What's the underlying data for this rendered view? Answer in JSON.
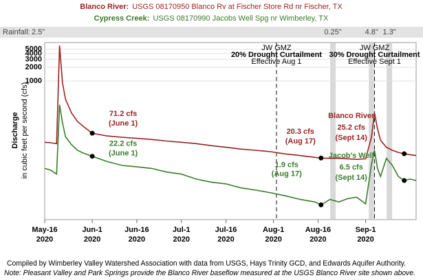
{
  "chart_data": {
    "type": "line",
    "title": {
      "river1": "Blanco River:",
      "site1": "USGS 08170950 Blanco Rv at Fischer Store Rd nr Fischer, TX",
      "river2": "Cypress Creek:",
      "site2": "USGS 08170990 Jacobs Well Spg nr Wimberley, TX"
    },
    "rainfall_label": "Rainfall:",
    "rainfall_first": "2.5\"",
    "rain_events": [
      {
        "x": 234,
        "label": "0.25\""
      },
      {
        "x": 247,
        "label": "4.8\""
      },
      {
        "x": 253,
        "label": "1.3\""
      }
    ],
    "y_label": "Discharge",
    "y_sublabel": "in cubic feet per second (cfs)",
    "log_scale": true,
    "grid": true,
    "xlim": [
      137,
      262
    ],
    "ylim": [
      0.9,
      7000
    ],
    "yticks": [
      1000,
      2000,
      3000,
      4000,
      5000
    ],
    "xticks": [
      {
        "value": 137,
        "label": "May-16\n2020"
      },
      {
        "value": 153,
        "label": "Jun-1\n2020"
      },
      {
        "value": 168,
        "label": "Jun-16\n2020"
      },
      {
        "value": 183,
        "label": "Jul-1\n2020"
      },
      {
        "value": 198,
        "label": "Jul-16\n2020"
      },
      {
        "value": 214,
        "label": "Aug-1\n2020"
      },
      {
        "value": 229,
        "label": "Aug-16\n2020"
      },
      {
        "value": 245,
        "label": "Sep-1\n2020"
      }
    ],
    "x": [
      137,
      139,
      141,
      142,
      143,
      144,
      146,
      148,
      150,
      153,
      158,
      163,
      168,
      173,
      178,
      183,
      188,
      193,
      198,
      203,
      208,
      213,
      218,
      223,
      228,
      230,
      233,
      236,
      239,
      242,
      245,
      247,
      248,
      249,
      250,
      252,
      254,
      256,
      258,
      260,
      262
    ],
    "series": [
      {
        "name": "Blanco River",
        "color": "#9b1f1f",
        "values": [
          45,
          44,
          42,
          6000,
          900,
          400,
          200,
          130,
          100,
          71.2,
          62,
          58,
          55,
          52,
          48,
          45,
          42,
          38,
          35,
          32,
          30,
          28,
          25,
          23,
          21,
          20.3,
          20,
          20,
          19.5,
          19,
          19.5,
          60,
          200,
          90,
          50,
          35,
          30,
          27,
          25.2,
          24,
          23
        ]
      },
      {
        "name": "Jacob's Well",
        "color": "#3a7a2a",
        "values": [
          12,
          11,
          9,
          300,
          120,
          60,
          40,
          30,
          26,
          22.2,
          17,
          14,
          13,
          12,
          10,
          9,
          7,
          6,
          5.5,
          4.5,
          4,
          3.5,
          3,
          2.5,
          2.2,
          1.9,
          2.5,
          2.2,
          2.6,
          2.8,
          2,
          15,
          30,
          12,
          8,
          20,
          14,
          8,
          6.5,
          7,
          6.5
        ]
      }
    ],
    "callouts": [
      {
        "series": 0,
        "x": 153,
        "value": 71.2,
        "label": "71.2 cfs",
        "note": "(June 1)"
      },
      {
        "series": 1,
        "x": 153,
        "value": 22.2,
        "label": "22.2 cfs",
        "note": "(June 1)"
      },
      {
        "series": 0,
        "x": 230,
        "value": 20.3,
        "label": "20.3 cfs",
        "note": "(Aug 17)"
      },
      {
        "series": 1,
        "x": 230,
        "value": 1.9,
        "label": "1.9 cfs",
        "note": "(Aug 17)"
      },
      {
        "series": 0,
        "x": 258,
        "value": 25.2,
        "label": "25.2 cfs",
        "note": "(Sept 14)",
        "name": "Blanco River"
      },
      {
        "series": 1,
        "x": 258,
        "value": 6.5,
        "label": "6.5 cfs",
        "note": "(Sept 14)",
        "name": "Jacob's Well"
      }
    ],
    "curtailments": [
      {
        "x": 215,
        "lines": [
          "JW GMZ",
          "20% Drought Curtailment",
          "Effective Aug 1"
        ]
      },
      {
        "x": 248,
        "lines": [
          "JW GMZ",
          "30% Drought Curtailment",
          "Effective Sept 1"
        ]
      }
    ],
    "footer": [
      "Compiled by Wimberley Valley Watershed Association with data from USGS, Hays Trinity GCD, and Edwards Aquifer Authority.",
      "Note:  Pleasant Valley and Park Springs provide the Blanco River baseflow measured at the USGS Blanco River site shown above."
    ]
  }
}
